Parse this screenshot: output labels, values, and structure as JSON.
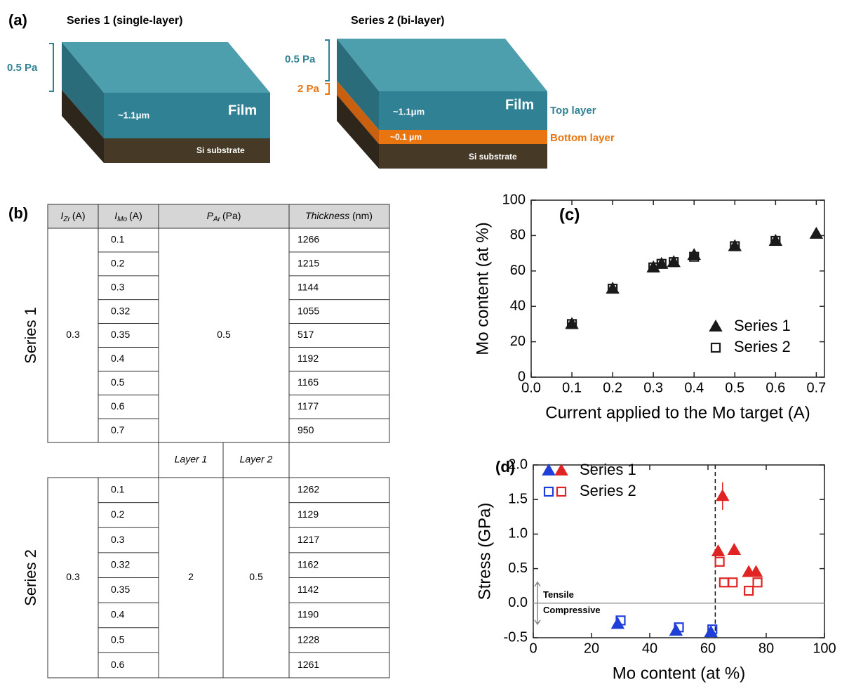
{
  "panel_a": {
    "label": "(a)",
    "series1": {
      "title": "Series 1 (single-layer)",
      "pressure": "0.5 Pa",
      "film": "Film",
      "thickness": "~1.1μm",
      "substrate": "Si substrate"
    },
    "series2": {
      "title": "Series 2 (bi-layer)",
      "top_pressure": "0.5 Pa",
      "bottom_pressure": "2 Pa",
      "film": "Film",
      "top_thickness": "~1.1μm",
      "bottom_thickness": "~0.1 μm",
      "substrate": "Si substrate",
      "top_label": "Top layer",
      "bottom_label": "Bottom layer"
    }
  },
  "table": {
    "label": "(b)",
    "header": {
      "i_zr": {
        "symbol": "I",
        "sub": "Zr",
        "unit": "(A)"
      },
      "i_mo": {
        "symbol": "I",
        "sub": "Mo",
        "unit": "(A)"
      },
      "p_ar": {
        "symbol": "P",
        "sub": "Ar",
        "unit": "(Pa)"
      },
      "thickness": {
        "name": "Thickness",
        "unit": "(nm)"
      }
    },
    "layer_headers": [
      "Layer 1",
      "Layer 2"
    ],
    "groups": [
      {
        "name": "Series 1",
        "i_zr": 0.3,
        "p_ar": [
          0.5
        ],
        "i_mo": [
          0.1,
          0.2,
          0.3,
          0.32,
          0.35,
          0.4,
          0.5,
          0.6,
          0.7
        ],
        "thickness": [
          1266,
          1215,
          1144,
          1055,
          517,
          1192,
          1165,
          1177,
          950
        ]
      },
      {
        "name": "Series 2",
        "i_zr": 0.3,
        "p_ar": [
          2,
          0.5
        ],
        "i_mo": [
          0.1,
          0.2,
          0.3,
          0.32,
          0.35,
          0.4,
          0.5,
          0.6
        ],
        "thickness": [
          1262,
          1129,
          1217,
          1162,
          1142,
          1190,
          1228,
          1261
        ]
      }
    ]
  },
  "chart_data": [
    {
      "type": "scatter",
      "panel_label": "(c)",
      "x_label": "Current applied to the Mo target (A)",
      "y_label": "Mo content (at %)",
      "x": [
        0.1,
        0.2,
        0.3,
        0.32,
        0.35,
        0.4,
        0.5,
        0.6,
        0.7
      ],
      "series": [
        {
          "name": "Series 1",
          "color": "#1a1a1a",
          "marker": "triangle",
          "filled": true,
          "values": [
            30,
            50,
            62,
            64,
            65,
            69,
            74,
            77,
            81
          ]
        },
        {
          "name": "Series 2",
          "color": "#1a1a1a",
          "marker": "square",
          "filled": false,
          "values": [
            30,
            50,
            62,
            64,
            65,
            68,
            74,
            77,
            null
          ]
        }
      ],
      "xlim": [
        0,
        0.72
      ],
      "xticks": [
        {
          "value": 0,
          "label": "0.0"
        },
        0.1,
        0.2,
        0.3,
        0.4,
        0.5,
        0.6,
        0.7
      ],
      "ylim": [
        0,
        100
      ],
      "yticks": [
        0,
        20,
        40,
        60,
        80,
        100
      ],
      "legend": "lower right"
    },
    {
      "type": "scatter",
      "panel_label": "(d)",
      "x_label": "Mo content (at %)",
      "y_label": "Stress (GPa)",
      "series": [
        {
          "name": "Series 1",
          "marker": "triangle",
          "filled": true,
          "legend_colors": [
            "#1f3fd8",
            "#e02424"
          ],
          "colors": [
            "#1f3fd8",
            "#1f3fd8",
            "#1f3fd8",
            "#e02424",
            "#e02424",
            "#e02424",
            "#e02424",
            "#e02424"
          ],
          "x": [
            29,
            49,
            61,
            63.5,
            65,
            69,
            74,
            76.5
          ],
          "values": [
            -0.3,
            -0.4,
            -0.42,
            0.75,
            1.55,
            0.77,
            0.45,
            0.45
          ],
          "errors": [
            0.05,
            0.05,
            0.05,
            0.05,
            0.2,
            0.05,
            0.05,
            0.05
          ]
        },
        {
          "name": "Series 2",
          "marker": "square",
          "filled": false,
          "legend_colors": [
            "#1f3fd8",
            "#e02424"
          ],
          "colors": [
            "#1f3fd8",
            "#1f3fd8",
            "#1f3fd8",
            "#e02424",
            "#e02424",
            "#e02424",
            "#e02424",
            "#e02424"
          ],
          "x": [
            30,
            50,
            61.5,
            64,
            65.5,
            68.5,
            74,
            77
          ],
          "values": [
            -0.25,
            -0.35,
            -0.38,
            0.6,
            0.3,
            0.3,
            0.18,
            0.3
          ]
        }
      ],
      "xlim": [
        0,
        100
      ],
      "xticks": [
        0,
        20,
        40,
        60,
        80,
        100
      ],
      "ylim": [
        -0.5,
        2.0
      ],
      "yticks": [
        -0.5,
        {
          "value": 0,
          "label": "0.0"
        },
        {
          "value": 0.5,
          "label": "0.5"
        },
        {
          "value": 1,
          "label": "1.0"
        },
        {
          "value": 1.5,
          "label": "1.5"
        },
        {
          "value": 2,
          "label": "2.0"
        }
      ],
      "reference_lines": [
        {
          "axis": "y",
          "value": 0,
          "style": "solid"
        },
        {
          "axis": "x",
          "value": 62.5,
          "style": "dashed"
        }
      ],
      "annotations": [
        "Tensile",
        "Compressive"
      ],
      "legend": "upper left"
    }
  ]
}
